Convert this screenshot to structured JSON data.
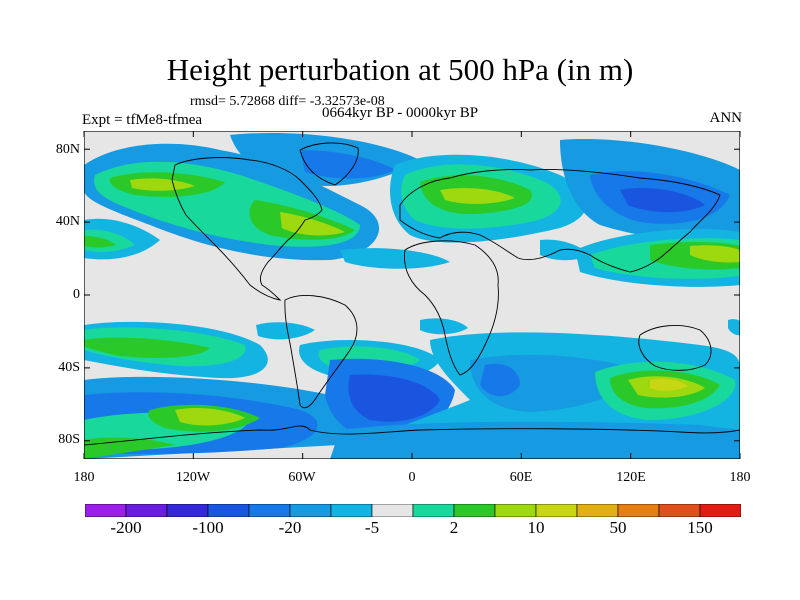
{
  "title": "Height perturbation at 500 hPa (in m)",
  "stats_line": "rmsd= 5.72868 diff= -3.32573e-08",
  "period": "0664kyr BP - 0000kyr BP",
  "experiment": "Expt = tfMe8-tfmea",
  "season": "ANN",
  "lat_labels": [
    "80N",
    "40N",
    "0",
    "40S",
    "80S"
  ],
  "lon_labels": [
    "180",
    "120W",
    "60W",
    "0",
    "60E",
    "120E",
    "180"
  ],
  "colorbar": {
    "labels": [
      "-200",
      "-100",
      "-20",
      "-5",
      "2",
      "10",
      "50",
      "150"
    ],
    "colors": [
      "#9a1fe8",
      "#6a1de0",
      "#3528d8",
      "#1a55e0",
      "#1778ea",
      "#169ae2",
      "#13b4e2",
      "#e6e6e6",
      "#18d89c",
      "#2bc829",
      "#9ed80e",
      "#c8d614",
      "#e0b014",
      "#e67e14",
      "#e0501c",
      "#e01c14"
    ]
  },
  "map_data": {
    "variable": "Height perturbation at 500 hPa",
    "units": "m",
    "projection": "cylindrical equidistant",
    "lon_range": [
      -180,
      180
    ],
    "lat_range": [
      -90,
      90
    ],
    "background_color": "#e6e6e6"
  }
}
